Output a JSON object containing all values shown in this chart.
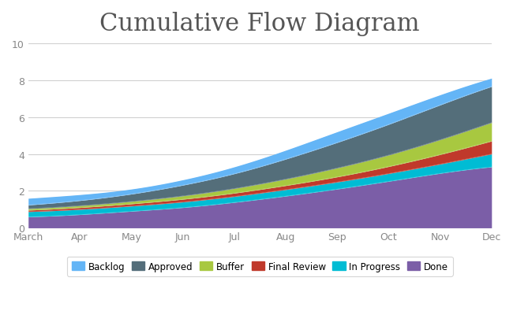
{
  "title": "Cumulative Flow Diagram",
  "title_fontsize": 22,
  "ylim": [
    0,
    10
  ],
  "yticks": [
    0,
    2,
    4,
    6,
    8,
    10
  ],
  "months": [
    "March",
    "Apr",
    "May",
    "Jun",
    "Jul",
    "Aug",
    "Sep",
    "Oct",
    "Nov",
    "Dec"
  ],
  "x_values": [
    0,
    1,
    2,
    3,
    4,
    5,
    6,
    7,
    8,
    9
  ],
  "series": {
    "Done": [
      0.6,
      0.72,
      0.9,
      1.1,
      1.38,
      1.72,
      2.1,
      2.52,
      2.95,
      3.3
    ],
    "In Progress": [
      0.28,
      0.28,
      0.28,
      0.3,
      0.32,
      0.35,
      0.38,
      0.42,
      0.5,
      0.7
    ],
    "Final Review": [
      0.08,
      0.1,
      0.12,
      0.15,
      0.18,
      0.22,
      0.28,
      0.38,
      0.52,
      0.7
    ],
    "Buffer": [
      0.08,
      0.1,
      0.13,
      0.18,
      0.25,
      0.35,
      0.48,
      0.62,
      0.8,
      1.0
    ],
    "Approved": [
      0.2,
      0.28,
      0.4,
      0.58,
      0.8,
      1.08,
      1.38,
      1.66,
      1.88,
      1.95
    ],
    "Backlog": [
      0.36,
      0.32,
      0.27,
      0.29,
      0.37,
      0.48,
      0.58,
      0.6,
      0.55,
      0.45
    ]
  },
  "colors": {
    "Done": "#7B5EA7",
    "In Progress": "#00BCD4",
    "Final Review": "#C0392B",
    "Buffer": "#A8C840",
    "Approved": "#546E7A",
    "Backlog": "#64B5F6"
  },
  "legend_order": [
    "Backlog",
    "Approved",
    "Buffer",
    "Final Review",
    "In Progress",
    "Done"
  ],
  "background_color": "#ffffff",
  "grid_color": "#d0d0d0",
  "tick_color": "#888888",
  "title_color": "#555555"
}
